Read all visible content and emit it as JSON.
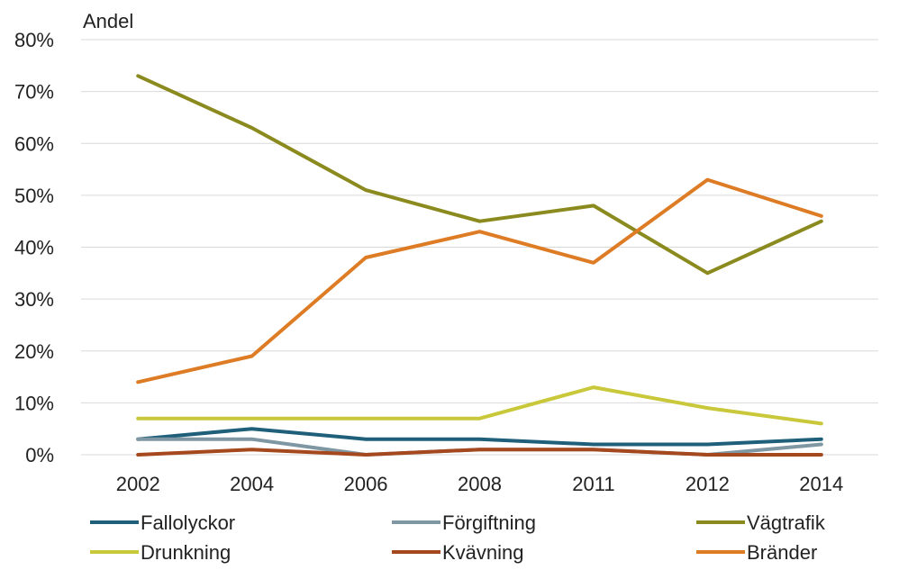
{
  "chart_data": {
    "type": "line",
    "ylabel": "Andel",
    "ylim": [
      0,
      80
    ],
    "yticks": [
      "0%",
      "10%",
      "20%",
      "30%",
      "40%",
      "50%",
      "60%",
      "70%",
      "80%"
    ],
    "categories": [
      "2002",
      "2004",
      "2006",
      "2008",
      "2011",
      "2012",
      "2014"
    ],
    "grid": "horizontal",
    "legend_position": "bottom",
    "series": [
      {
        "name": "Fallolyckor",
        "color": "#1f5f7a",
        "values": [
          3,
          5,
          3,
          3,
          2,
          2,
          3
        ]
      },
      {
        "name": "Förgiftning",
        "color": "#7f96a3",
        "values": [
          3,
          3,
          0,
          1,
          1,
          0,
          2
        ]
      },
      {
        "name": "Vägtrafik",
        "color": "#8a8a1f",
        "values": [
          73,
          63,
          51,
          45,
          48,
          35,
          45
        ]
      },
      {
        "name": "Drunkning",
        "color": "#c8c83a",
        "values": [
          7,
          7,
          7,
          7,
          13,
          9,
          6
        ]
      },
      {
        "name": "Kvävning",
        "color": "#a5481e",
        "values": [
          0,
          1,
          0,
          1,
          1,
          0,
          0
        ]
      },
      {
        "name": "Bränder",
        "color": "#dd7c25",
        "values": [
          14,
          19,
          38,
          43,
          37,
          53,
          46
        ]
      }
    ]
  }
}
